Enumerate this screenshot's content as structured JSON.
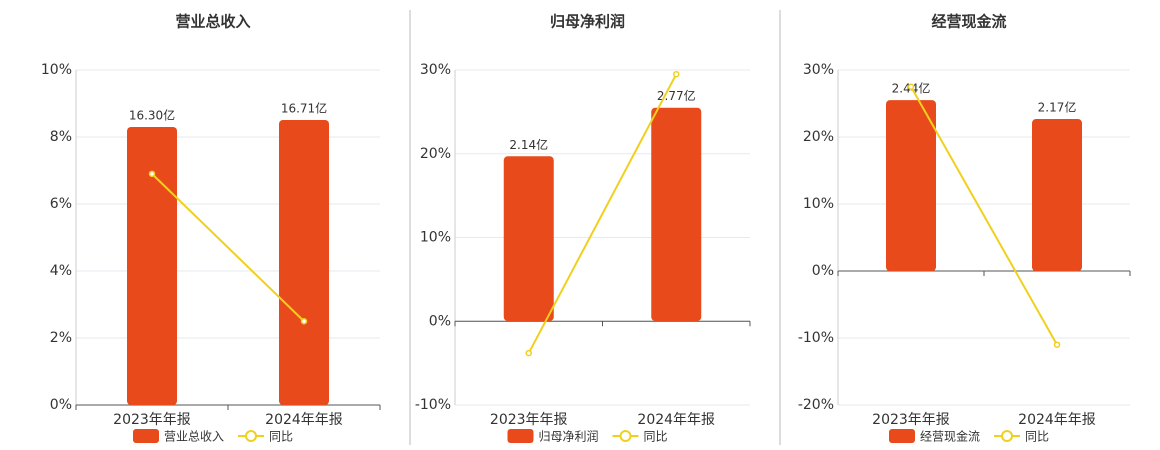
{
  "chart_data": [
    {
      "type": "bar",
      "title": "营业总收入",
      "categories": [
        "2023年年报",
        "2024年年报"
      ],
      "series": [
        {
          "name": "营业总收入",
          "color": "#e84a1b",
          "axis": "y2",
          "values": [
            16.3,
            16.71
          ],
          "value_labels": [
            "16.30亿",
            "16.71亿"
          ]
        },
        {
          "name": "同比",
          "type": "line",
          "color": "#f0d01e",
          "values": [
            6.9,
            2.5
          ]
        }
      ],
      "ylim": [
        0,
        10
      ],
      "yticks": [
        {
          "value": 0,
          "label": "0%"
        },
        {
          "value": 2,
          "label": "2%"
        },
        {
          "value": 4,
          "label": "4%"
        },
        {
          "value": 6,
          "label": "6%"
        },
        {
          "value": 8,
          "label": "8%"
        },
        {
          "value": 10,
          "label": "10%"
        }
      ],
      "y2lim": [
        0,
        19.64
      ],
      "grid": true
    },
    {
      "type": "bar",
      "title": "归母净利润",
      "categories": [
        "2023年年报",
        "2024年年报"
      ],
      "series": [
        {
          "name": "归母净利润",
          "color": "#e84a1b",
          "axis": "y2",
          "values": [
            2.14,
            2.77
          ],
          "value_labels": [
            "2.14亿",
            "2.77亿"
          ]
        },
        {
          "name": "同比",
          "type": "line",
          "color": "#f0d01e",
          "values": [
            -3.8,
            29.5
          ]
        }
      ],
      "ylim": [
        -10,
        30
      ],
      "yticks": [
        {
          "value": -10,
          "label": "-10%"
        },
        {
          "value": 0,
          "label": "0%"
        },
        {
          "value": 10,
          "label": "10%"
        },
        {
          "value": 20,
          "label": "20%"
        },
        {
          "value": 30,
          "label": "30%"
        }
      ],
      "y2lim": [
        -1.09,
        3.26
      ],
      "grid": true
    },
    {
      "type": "bar",
      "title": "经营现金流",
      "categories": [
        "2023年年报",
        "2024年年报"
      ],
      "series": [
        {
          "name": "经营现金流",
          "color": "#e84a1b",
          "axis": "y2",
          "values": [
            2.44,
            2.17
          ],
          "value_labels": [
            "2.44亿",
            "2.17亿"
          ]
        },
        {
          "name": "同比",
          "type": "line",
          "color": "#f0d01e",
          "values": [
            27.5,
            -11.0
          ]
        }
      ],
      "ylim": [
        -20,
        30
      ],
      "yticks": [
        {
          "value": -20,
          "label": "-20%"
        },
        {
          "value": -10,
          "label": "-10%"
        },
        {
          "value": 0,
          "label": "0%"
        },
        {
          "value": 10,
          "label": "10%"
        },
        {
          "value": 20,
          "label": "20%"
        },
        {
          "value": 30,
          "label": "30%"
        }
      ],
      "y2lim": [
        -1.91,
        2.87
      ],
      "grid": true
    }
  ]
}
